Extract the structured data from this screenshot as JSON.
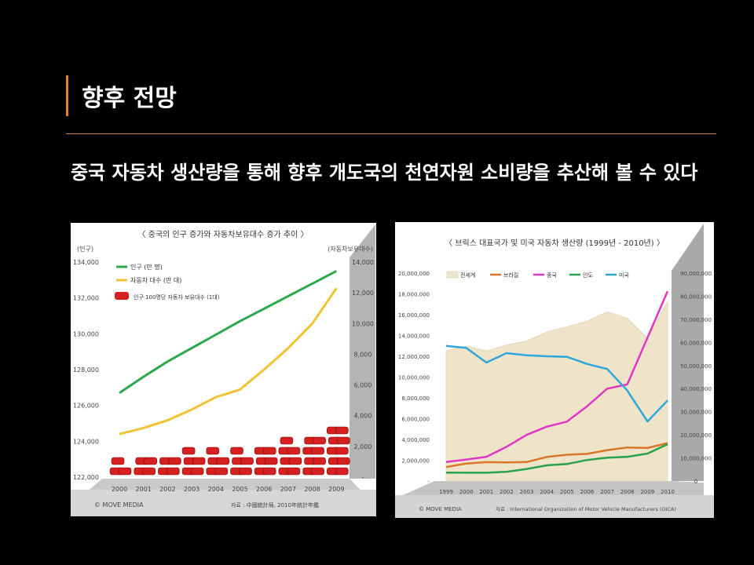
{
  "slide": {
    "title": "향후 전망",
    "subtitle": "중국 자동차 생산량을 통해 향후 개도국의 천연자원 소비량을 추산해 볼 수 있다"
  },
  "colors": {
    "accent": "#e0823a",
    "background": "#000000"
  },
  "chart_data": [
    {
      "type": "line",
      "title": "〈 중국의 인구 증가와 자동차보유대수 증가 추이 〉",
      "ylabel_left": "(인구)",
      "ylabel_right": "(자동차보유대수)",
      "x": [
        "2000",
        "2001",
        "2002",
        "2003",
        "2004",
        "2005",
        "2006",
        "2007",
        "2008",
        "2009"
      ],
      "ylim_left": [
        122000,
        134000
      ],
      "yticks_left": [
        "134,000",
        "132,000",
        "130,000",
        "128,000",
        "126,000",
        "124,000",
        "122,000"
      ],
      "ylim_right": [
        0,
        14000
      ],
      "yticks_right": [
        "14,000",
        "12,000",
        "10,000",
        "8,000",
        "6,000",
        "4,000",
        "2,000",
        "-"
      ],
      "series": [
        {
          "name": "인구 (만 명)",
          "axis": "left",
          "color": "#2aa84a",
          "values": [
            126700,
            127600,
            128450,
            129200,
            129950,
            130700,
            131400,
            132100,
            132800,
            133500
          ]
        },
        {
          "name": "자동차 대수 (만 대)",
          "axis": "right",
          "color": "#f1c232",
          "values": [
            2800,
            3200,
            3700,
            4400,
            5200,
            5700,
            7000,
            8400,
            10000,
            12300
          ]
        }
      ],
      "pictogram": {
        "legend": "인구 100명당 자동차 보유대수 (1대)",
        "color": "#d61f1f",
        "counts": [
          3,
          4,
          4,
          5,
          5,
          5,
          6,
          7,
          8,
          10
        ]
      },
      "legend_position": "top-left",
      "watermark": "© MOVE MEDIA",
      "source": "자료 : 中國統計局, 2010年統計年鑑"
    },
    {
      "type": "line",
      "title": "〈 브릭스 대표국가 및 미국 자동차 생산량 (1999년 - 2010년) 〉",
      "x": [
        "1999",
        "2000",
        "2001",
        "2002",
        "2003",
        "2004",
        "2005",
        "2006",
        "2007",
        "2008",
        "2009",
        "2010"
      ],
      "ylim_left": [
        0,
        20000000
      ],
      "yticks_left": [
        "20,000,000",
        "18,000,000",
        "16,000,000",
        "14,000,000",
        "12,000,000",
        "10,000,000",
        "8,000,000",
        "6,000,000",
        "4,000,000",
        "2,000,000",
        "-"
      ],
      "ylim_right": [
        0,
        90000000
      ],
      "yticks_right": [
        "90,000,000",
        "80,000,000",
        "70,000,000",
        "60,000,000",
        "50,000,000",
        "40,000,000",
        "30,000,000",
        "20,000,000",
        "10,000,000",
        "0"
      ],
      "series": [
        {
          "name": "전세계",
          "axis": "right",
          "type": "area",
          "color": "#efe3c8",
          "values": [
            56300000,
            58400000,
            56300000,
            58900000,
            60600000,
            64500000,
            66700000,
            69200000,
            73200000,
            70500000,
            61800000,
            77600000
          ]
        },
        {
          "name": "브라질",
          "axis": "left",
          "color": "#d9772b",
          "values": [
            1350000,
            1680000,
            1820000,
            1790000,
            1830000,
            2320000,
            2530000,
            2610000,
            2970000,
            3220000,
            3180000,
            3650000
          ]
        },
        {
          "name": "중국",
          "axis": "left",
          "color": "#e036c8",
          "values": [
            1830000,
            2070000,
            2330000,
            3290000,
            4440000,
            5230000,
            5710000,
            7190000,
            8880000,
            9300000,
            13790000,
            18260000
          ]
        },
        {
          "name": "인도",
          "axis": "left",
          "color": "#27a34a",
          "values": [
            810000,
            800000,
            800000,
            890000,
            1160000,
            1510000,
            1640000,
            2020000,
            2250000,
            2330000,
            2640000,
            3540000
          ]
        },
        {
          "name": "미국",
          "axis": "left",
          "color": "#2ea7db",
          "values": [
            13000000,
            12800000,
            11400000,
            12300000,
            12100000,
            12000000,
            11950000,
            11260000,
            10780000,
            8700000,
            5730000,
            7760000
          ]
        }
      ],
      "legend_position": "top",
      "watermark": "© MOVE MEDIA",
      "source": "자료 : International Organization of Motor Vehicle Manufacturers (OICA)"
    }
  ]
}
